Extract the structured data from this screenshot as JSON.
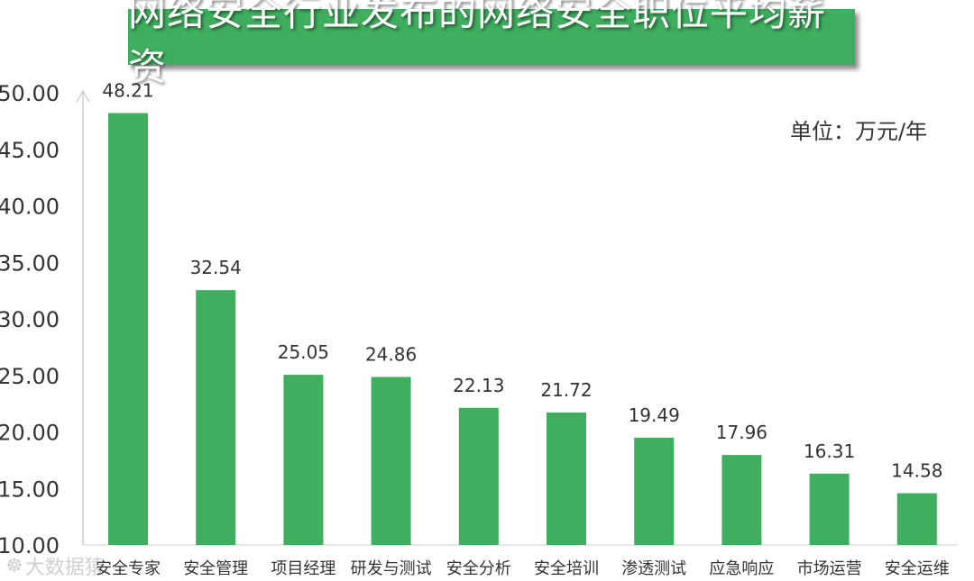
{
  "title": "网络安全行业发布的网络安全职位平均薪资",
  "unit": "单位：万元/年",
  "watermark": "大数据猿",
  "colors": {
    "bar": "#3fae5e",
    "banner": "#3fae5e",
    "axis": "#d0d0d0",
    "text": "#333333"
  },
  "chart_data": {
    "type": "bar",
    "title": "网络安全行业发布的网络安全职位平均薪资",
    "xlabel": "",
    "ylabel": "",
    "ylim": [
      10,
      50
    ],
    "yticks": [
      "10.00",
      "15.00",
      "20.00",
      "25.00",
      "30.00",
      "35.00",
      "40.00",
      "45.00",
      "50.00"
    ],
    "grid": false,
    "categories": [
      "安全专家",
      "安全管理",
      "项目经理",
      "研发与测试",
      "安全分析",
      "安全培训",
      "渗透测试",
      "应急响应",
      "市场运营",
      "安全运维"
    ],
    "values": [
      48.21,
      32.54,
      25.05,
      24.86,
      22.13,
      21.72,
      19.49,
      17.96,
      16.31,
      14.58
    ],
    "value_labels": [
      "48.21",
      "32.54",
      "25.05",
      "24.86",
      "22.13",
      "21.72",
      "19.49",
      "17.96",
      "16.31",
      "14.58"
    ]
  }
}
